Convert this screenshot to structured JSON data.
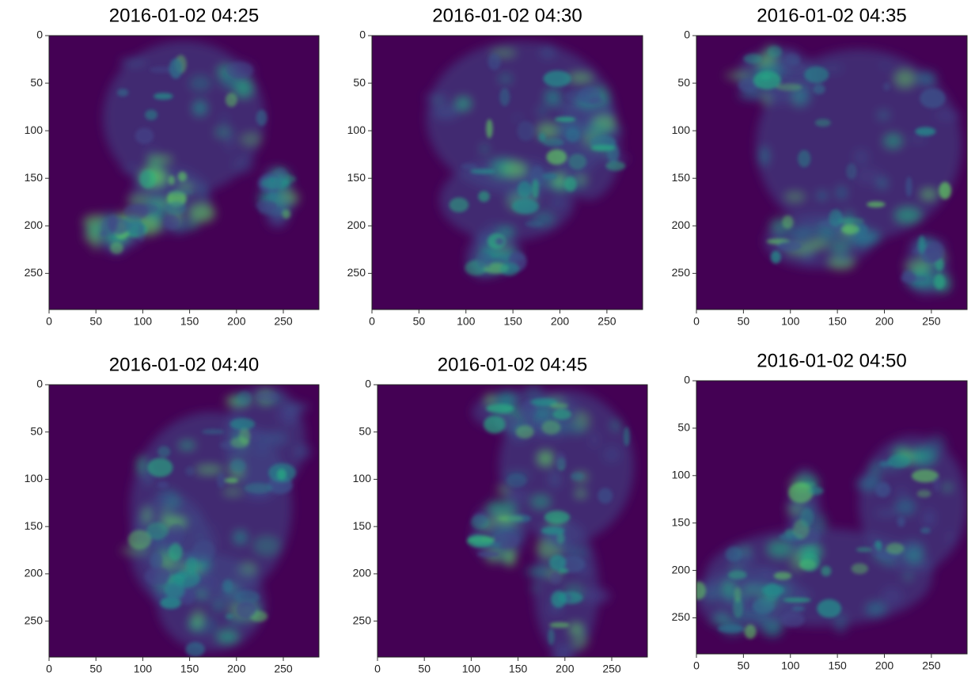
{
  "chart_data": [
    {
      "type": "image",
      "title": "2016-01-02 04:25",
      "xlim": [
        0,
        288
      ],
      "ylim": [
        288,
        0
      ],
      "xticks": [
        0,
        50,
        100,
        150,
        200,
        250
      ],
      "yticks": [
        0,
        50,
        100,
        150,
        200,
        250
      ]
    },
    {
      "type": "image",
      "title": "2016-01-02 04:30",
      "xlim": [
        0,
        288
      ],
      "ylim": [
        288,
        0
      ],
      "xticks": [
        0,
        50,
        100,
        150,
        200,
        250
      ],
      "yticks": [
        0,
        50,
        100,
        150,
        200,
        250
      ]
    },
    {
      "type": "image",
      "title": "2016-01-02 04:35",
      "xlim": [
        0,
        288
      ],
      "ylim": [
        288,
        0
      ],
      "xticks": [
        0,
        50,
        100,
        150,
        200,
        250
      ],
      "yticks": [
        0,
        50,
        100,
        150,
        200,
        250
      ]
    },
    {
      "type": "image",
      "title": "2016-01-02 04:40",
      "xlim": [
        0,
        288
      ],
      "ylim": [
        288,
        0
      ],
      "xticks": [
        0,
        50,
        100,
        150,
        200,
        250
      ],
      "yticks": [
        0,
        50,
        100,
        150,
        200,
        250
      ]
    },
    {
      "type": "image",
      "title": "2016-01-02 04:45",
      "xlim": [
        0,
        288
      ],
      "ylim": [
        288,
        0
      ],
      "xticks": [
        0,
        50,
        100,
        150,
        200,
        250
      ],
      "yticks": [
        0,
        50,
        100,
        150,
        200,
        250
      ]
    },
    {
      "type": "image",
      "title": "2016-01-02 04:50",
      "xlim": [
        0,
        288
      ],
      "ylim": [
        288,
        0
      ],
      "xticks": [
        0,
        50,
        100,
        150,
        200,
        250
      ],
      "yticks": [
        0,
        50,
        100,
        150,
        200,
        250
      ]
    }
  ]
}
